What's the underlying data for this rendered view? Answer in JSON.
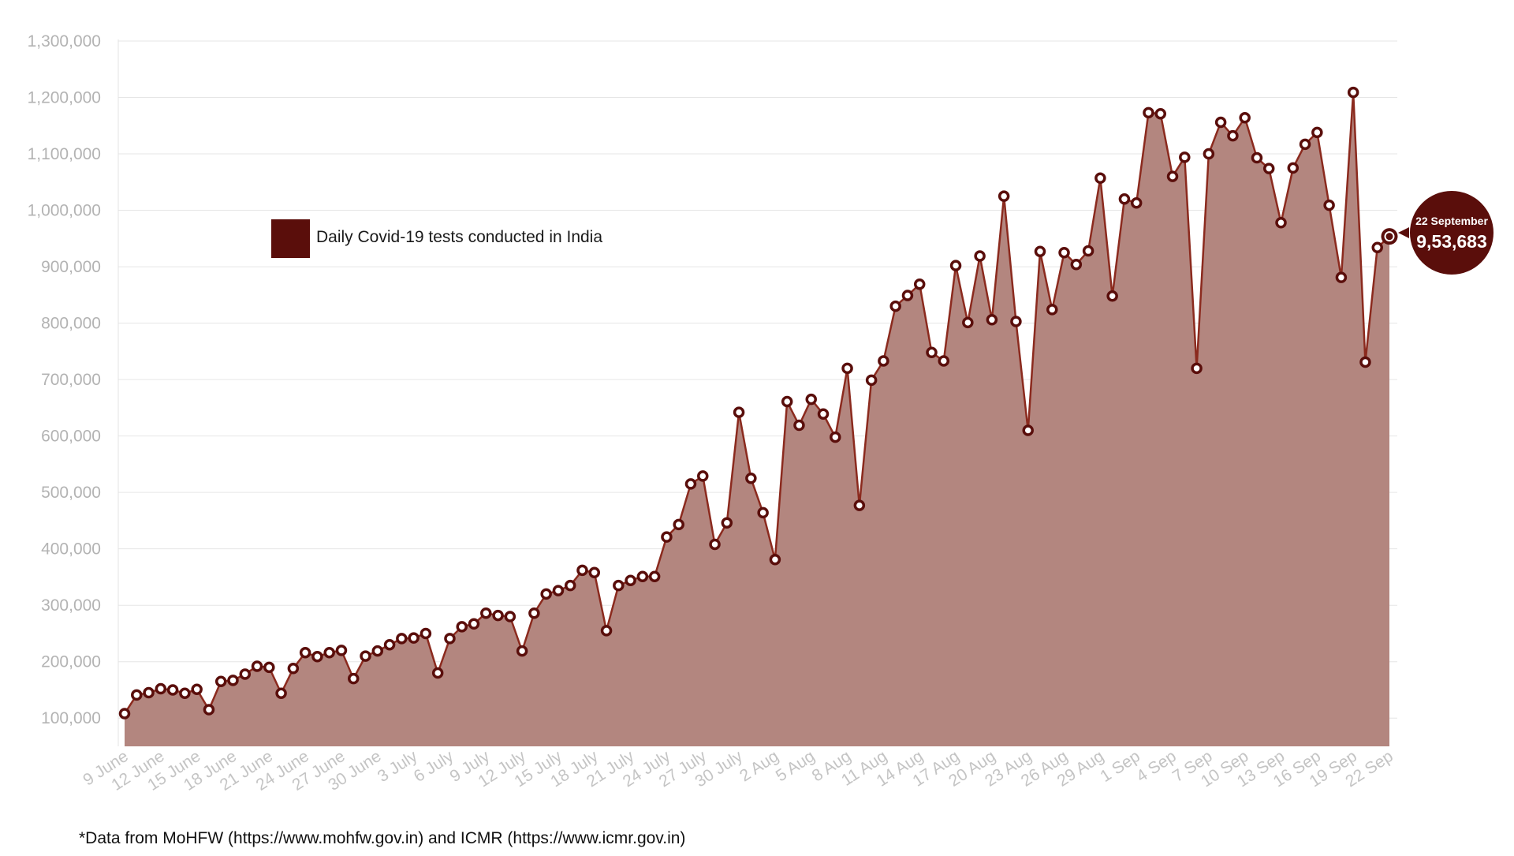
{
  "chart_data": {
    "type": "area",
    "legend": {
      "label": "Daily Covid-19 tests conducted in India",
      "placement": "top-left"
    },
    "ylim": [
      50000,
      1300000
    ],
    "yticks": [
      100000,
      200000,
      300000,
      400000,
      500000,
      600000,
      700000,
      800000,
      900000,
      1000000,
      1100000,
      1200000,
      1300000
    ],
    "ytick_labels": [
      "100,000",
      "200,000",
      "300,000",
      "400,000",
      "500,000",
      "600,000",
      "700,000",
      "800,000",
      "900,000",
      "1,000,000",
      "1,100,000",
      "1,200,000",
      "1,300,000"
    ],
    "xtick_labels": [
      "9 June",
      "12 June",
      "15 June",
      "18 June",
      "21 June",
      "24 June",
      "27 June",
      "30 June",
      "3 July",
      "6 July",
      "9 July",
      "12 July",
      "15 July",
      "18 July",
      "21 July",
      "24 July",
      "27 July",
      "30 July",
      "2 Aug",
      "5 Aug",
      "8 Aug",
      "11 Aug",
      "14 Aug",
      "17 Aug",
      "20 Aug",
      "23 Aug",
      "26 Aug",
      "29 Aug",
      "1 Sep",
      "4 Sep",
      "7 Sep",
      "10 Sep",
      "13 Sep",
      "16 Sep",
      "19 Sep",
      "22 Sep"
    ],
    "grid": true,
    "colors": {
      "fill": "#b3867f",
      "line": "#8b2a1e",
      "marker": "#5a0e0b",
      "legend_swatch": "#5a0e0b",
      "callout": "#5a0e0b"
    },
    "series": [
      {
        "name": "Daily Covid-19 tests conducted in India",
        "values": [
          108000,
          141000,
          145000,
          152000,
          150000,
          144000,
          151000,
          115000,
          165000,
          167000,
          178000,
          192000,
          190000,
          144000,
          188000,
          216000,
          209000,
          216000,
          220000,
          170000,
          210000,
          219000,
          230000,
          241000,
          242000,
          250000,
          180000,
          241000,
          262000,
          267000,
          286000,
          282000,
          280000,
          219000,
          286000,
          320000,
          326000,
          335000,
          362000,
          358000,
          255000,
          335000,
          344000,
          351000,
          351000,
          421000,
          443000,
          515000,
          529000,
          408000,
          446000,
          642000,
          525000,
          464000,
          381000,
          661000,
          619000,
          665000,
          639000,
          598000,
          720000,
          477000,
          699000,
          733000,
          830000,
          849000,
          869000,
          748000,
          733000,
          902000,
          801000,
          919000,
          806000,
          1025000,
          803000,
          610000,
          927000,
          824000,
          925000,
          904000,
          928000,
          1057000,
          848000,
          1020000,
          1013000,
          1173000,
          1171000,
          1060000,
          1094000,
          720000,
          1100000,
          1156000,
          1132000,
          1164000,
          1093000,
          1074000,
          978000,
          1075000,
          1117000,
          1138000,
          1009000,
          881000,
          1209000,
          731000,
          934000,
          953683
        ]
      }
    ],
    "callout": {
      "date": "22 September",
      "value": "9,53,683"
    },
    "footnote": "*Data from MoHFW (https://www.mohfw.gov.in) and ICMR (https://www.icmr.gov.in)"
  }
}
